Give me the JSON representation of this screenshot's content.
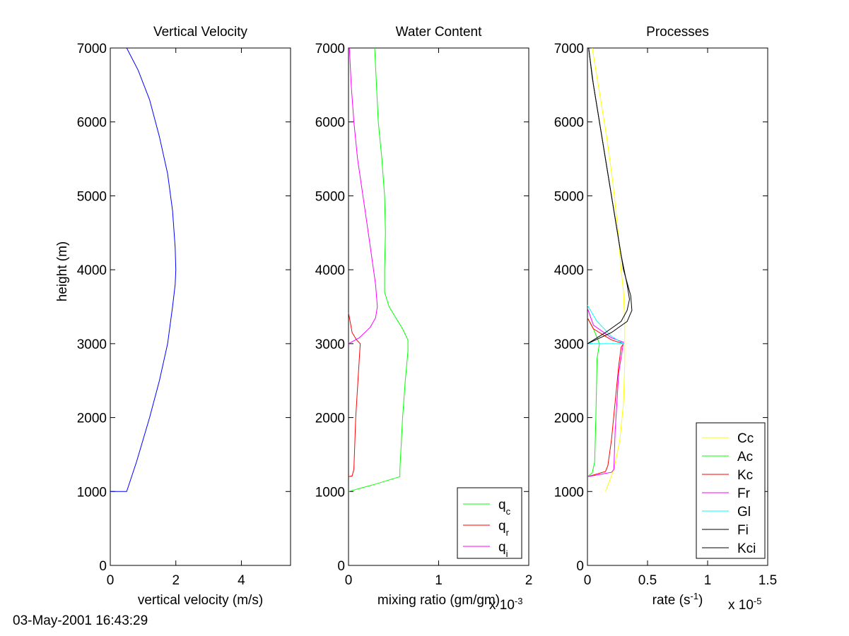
{
  "timestamp": "03-May-2001 16:43:29",
  "chart_data": [
    {
      "type": "line",
      "title": "Vertical Velocity",
      "xlabel": "vertical velocity (m/s)",
      "ylabel": "height (m)",
      "xlim": [
        0,
        5.5
      ],
      "ylim": [
        0,
        7000
      ],
      "xticks": [
        0,
        2,
        4
      ],
      "xtick_labels": [
        "0",
        "2",
        "4"
      ],
      "yticks": [
        0,
        1000,
        2000,
        3000,
        4000,
        5000,
        6000,
        7000
      ],
      "ytick_labels": [
        "0",
        "1000",
        "2000",
        "3000",
        "4000",
        "5000",
        "6000",
        "7000"
      ],
      "exponent_label": "",
      "legend": null,
      "series": [
        {
          "name": "w",
          "color": "#0000ff",
          "x": [
            0,
            0.5,
            0.8,
            1.2,
            1.5,
            1.75,
            1.9,
            1.98,
            2.0,
            1.98,
            1.9,
            1.75,
            1.5,
            1.2,
            0.85,
            0.5
          ],
          "y": [
            1000,
            1000,
            1400,
            2000,
            2500,
            3000,
            3500,
            3800,
            4000,
            4300,
            4800,
            5300,
            5800,
            6300,
            6700,
            7000
          ]
        }
      ]
    },
    {
      "type": "line",
      "title": "Water Content",
      "xlabel": "mixing ratio (gm/gm)",
      "ylabel": "",
      "xlim": [
        0,
        2
      ],
      "ylim": [
        0,
        7000
      ],
      "xticks": [
        0,
        1,
        2
      ],
      "xtick_labels": [
        "0",
        "1",
        "2"
      ],
      "yticks": [
        0,
        1000,
        2000,
        3000,
        4000,
        5000,
        6000,
        7000
      ],
      "ytick_labels": [
        "0",
        "1000",
        "2000",
        "3000",
        "4000",
        "5000",
        "6000",
        "7000"
      ],
      "exponent_label": "x 10",
      "exponent_power": "-3",
      "legend": {
        "position": "bottom-right"
      },
      "series": [
        {
          "name": "q",
          "subscript": "c",
          "color": "#00ff00",
          "x": [
            0,
            0.3,
            0.57,
            0.57,
            0.6,
            0.63,
            0.66,
            0.66,
            0.6,
            0.45,
            0.4,
            0.4,
            0.41,
            0.4,
            0.37,
            0.33,
            0.29
          ],
          "y": [
            1000,
            1100,
            1200,
            1300,
            2000,
            2500,
            2900,
            3050,
            3200,
            3500,
            3700,
            4000,
            4500,
            5000,
            5500,
            6000,
            7000
          ]
        },
        {
          "name": "q",
          "subscript": "r",
          "color": "#ff0000",
          "x": [
            0,
            0.04,
            0.06,
            0.08,
            0.12,
            0.13,
            0.09,
            0.04,
            0
          ],
          "y": [
            1200,
            1210,
            1300,
            2000,
            2800,
            3000,
            3050,
            3150,
            3420
          ]
        },
        {
          "name": "q",
          "subscript": "i",
          "color": "#ff00ff",
          "x": [
            0,
            0.12,
            0.24,
            0.3,
            0.32,
            0.3,
            0.22,
            0.16,
            0.1,
            0.06,
            0.03,
            0.01
          ],
          "y": [
            3000,
            3080,
            3220,
            3350,
            3500,
            3800,
            4500,
            5000,
            5500,
            6000,
            6500,
            7000
          ]
        }
      ]
    },
    {
      "type": "line",
      "title": "Processes",
      "xlabel": "rate (s",
      "xlabel_power": "-1",
      "xlabel_end": ")",
      "ylabel": "",
      "xlim": [
        0,
        1.5
      ],
      "ylim": [
        0,
        7000
      ],
      "xticks": [
        0,
        0.5,
        1,
        1.5
      ],
      "xtick_labels": [
        "0",
        "0.5",
        "1",
        "1.5"
      ],
      "yticks": [
        0,
        1000,
        2000,
        3000,
        4000,
        5000,
        6000,
        7000
      ],
      "ytick_labels": [
        "0",
        "1000",
        "2000",
        "3000",
        "4000",
        "5000",
        "6000",
        "7000"
      ],
      "exponent_label": "x 10",
      "exponent_power": "-5",
      "legend": {
        "position": "bottom-right"
      },
      "series": [
        {
          "name": "Cc",
          "color": "#ffff00",
          "x": [
            0.15,
            0.22,
            0.27,
            0.3,
            0.31,
            0.31,
            0.3,
            0.28,
            0.25,
            0.21,
            0.16,
            0.1,
            0.04
          ],
          "y": [
            1000,
            1300,
            1700,
            2200,
            2700,
            3300,
            3700,
            4000,
            4600,
            5200,
            5800,
            6400,
            7000
          ]
        },
        {
          "name": "Ac",
          "color": "#00ff00",
          "x": [
            0,
            0.04,
            0.06,
            0.07,
            0.08,
            0.1,
            0.05,
            0
          ],
          "y": [
            1200,
            1250,
            1400,
            2000,
            2800,
            3000,
            3200,
            3350
          ]
        },
        {
          "name": "Kc",
          "color": "#ff0000",
          "x": [
            0,
            0.15,
            0.17,
            0.2,
            0.23,
            0.26,
            0.28,
            0.3,
            0.2,
            0.05,
            0
          ],
          "y": [
            1200,
            1270,
            1350,
            1700,
            2200,
            2700,
            2950,
            3000,
            3050,
            3200,
            3350
          ]
        },
        {
          "name": "Fr",
          "color": "#ff00ff",
          "x": [
            0,
            0.1,
            0.2,
            0.22,
            0.23,
            0.26,
            0.3,
            0.2,
            0.05,
            0
          ],
          "y": [
            1200,
            1230,
            1260,
            1300,
            1800,
            2600,
            3020,
            3080,
            3250,
            3480
          ]
        },
        {
          "name": "Gl",
          "color": "#00ffff",
          "x": [
            0,
            0.3,
            0.2,
            0.08,
            0
          ],
          "y": [
            3000,
            3000,
            3100,
            3300,
            3520
          ]
        },
        {
          "name": "Fi",
          "color": "#000000",
          "x": [
            0,
            0.15,
            0.28,
            0.33,
            0.35,
            0.33,
            0.28,
            0.22,
            0.16,
            0.1,
            0.04,
            0.01
          ],
          "y": [
            3000,
            3150,
            3300,
            3450,
            3600,
            3800,
            4200,
            4800,
            5400,
            6000,
            6600,
            7000
          ]
        },
        {
          "name": "Kci",
          "color": "#000000",
          "x": [
            0,
            0.2,
            0.33,
            0.37,
            0.36,
            0.3,
            0.23,
            0.17,
            0.11,
            0.05,
            0.01
          ],
          "y": [
            3000,
            3150,
            3300,
            3450,
            3650,
            4000,
            4700,
            5300,
            5900,
            6500,
            7000
          ]
        }
      ]
    }
  ]
}
